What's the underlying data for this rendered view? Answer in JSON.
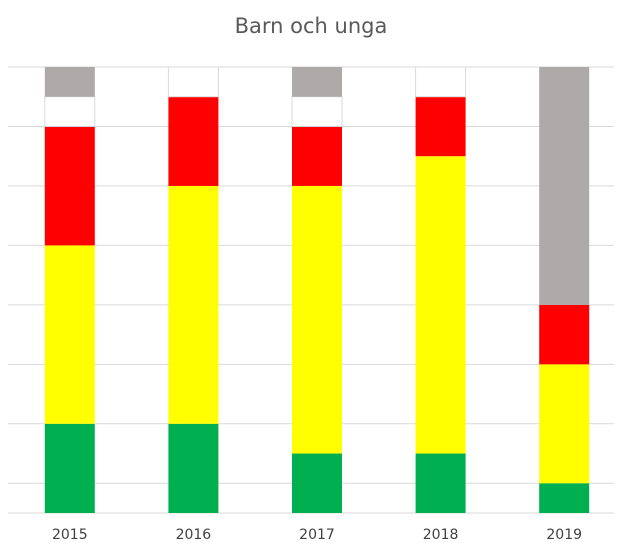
{
  "chart_data": {
    "type": "stacked_bar",
    "title": "Barn och unga",
    "categories": [
      "2015",
      "2016",
      "2017",
      "2018",
      "2019"
    ],
    "series": [
      {
        "color": "#00b050",
        "values": [
          3,
          3,
          2,
          2,
          1
        ]
      },
      {
        "color": "#ffff00",
        "values": [
          6,
          8,
          9,
          10,
          4
        ]
      },
      {
        "color": "#ff0000",
        "values": [
          4,
          3,
          2,
          2,
          2
        ]
      },
      {
        "color": "#ffffff",
        "values": [
          1,
          1,
          1,
          1,
          0
        ]
      },
      {
        "color": "#aeaaaa",
        "values": [
          1,
          0,
          1,
          0,
          8
        ]
      }
    ],
    "ylim": [
      0,
      15
    ],
    "yticks": [
      1,
      3,
      5,
      7,
      9,
      11,
      13,
      15
    ],
    "grid": true
  }
}
